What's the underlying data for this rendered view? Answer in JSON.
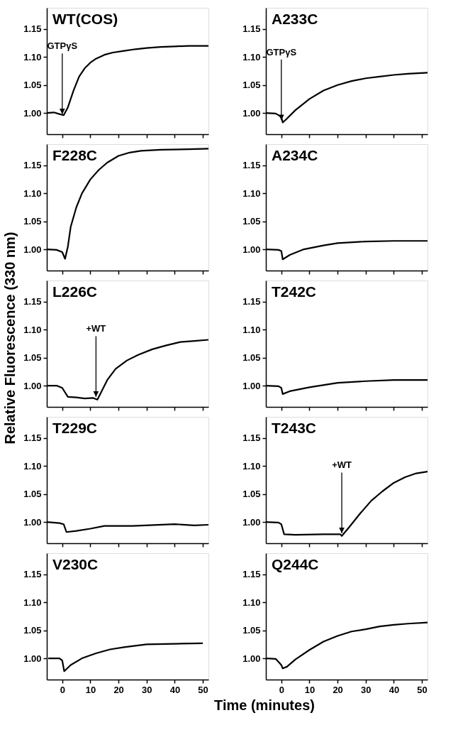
{
  "chart_data": [
    {
      "type": "line",
      "title": "WT(COS)",
      "tick_labels": "y",
      "xlim": [
        -5.5,
        52
      ],
      "ylim": [
        0.962,
        1.188
      ],
      "xticks": [
        0,
        10,
        20,
        30,
        40,
        50
      ],
      "yticks": [
        {
          "value": 1.0,
          "label": "1.00"
        },
        {
          "value": 1.05,
          "label": "1.05"
        },
        {
          "value": 1.1,
          "label": "1.10"
        },
        {
          "value": 1.15,
          "label": "1.15"
        }
      ],
      "series": [
        {
          "color": "#000000",
          "x": [
            -5.5,
            -3,
            -1,
            0.5,
            2,
            4,
            6,
            8,
            10,
            12,
            15,
            18,
            22,
            26,
            30,
            35,
            40,
            45,
            52
          ],
          "values": [
            1.0,
            1.001,
            0.998,
            0.996,
            1.01,
            1.04,
            1.065,
            1.08,
            1.09,
            1.097,
            1.104,
            1.108,
            1.111,
            1.114,
            1.116,
            1.118,
            1.119,
            1.12,
            1.12
          ]
        }
      ],
      "annotations": [
        {
          "text": "GTPγS",
          "x": 0,
          "y": 0.998
        }
      ]
    },
    {
      "type": "line",
      "title": "A233C",
      "tick_labels": "y",
      "xlim": [
        -5.5,
        52
      ],
      "ylim": [
        0.962,
        1.188
      ],
      "xticks": [
        0,
        10,
        20,
        30,
        40,
        50
      ],
      "yticks": [
        {
          "value": 1.0,
          "label": "1.00"
        },
        {
          "value": 1.05,
          "label": "1.05"
        },
        {
          "value": 1.1,
          "label": "1.10"
        },
        {
          "value": 1.15,
          "label": "1.15"
        }
      ],
      "series": [
        {
          "color": "#000000",
          "x": [
            -5.5,
            -2,
            0,
            0.5,
            2,
            5,
            10,
            15,
            20,
            25,
            30,
            35,
            40,
            45,
            52
          ],
          "values": [
            1.0,
            0.999,
            0.993,
            0.983,
            0.99,
            1.005,
            1.025,
            1.04,
            1.05,
            1.057,
            1.062,
            1.065,
            1.068,
            1.07,
            1.072
          ]
        }
      ],
      "annotations": [
        {
          "text": "GTPγS",
          "x": 0,
          "y": 0.987
        }
      ]
    },
    {
      "type": "line",
      "title": "F228C",
      "tick_labels": "y",
      "xlim": [
        -5.5,
        52
      ],
      "ylim": [
        0.962,
        1.188
      ],
      "xticks": [
        0,
        10,
        20,
        30,
        40,
        50
      ],
      "yticks": [
        {
          "value": 1.0,
          "label": "1.00"
        },
        {
          "value": 1.05,
          "label": "1.05"
        },
        {
          "value": 1.1,
          "label": "1.10"
        },
        {
          "value": 1.15,
          "label": "1.15"
        }
      ],
      "series": [
        {
          "color": "#000000",
          "x": [
            -5.5,
            -2,
            0,
            1,
            2,
            3,
            5,
            7,
            10,
            13,
            16,
            20,
            24,
            28,
            35,
            45,
            52
          ],
          "values": [
            1.0,
            0.999,
            0.995,
            0.983,
            1.005,
            1.04,
            1.075,
            1.1,
            1.125,
            1.142,
            1.155,
            1.167,
            1.173,
            1.176,
            1.178,
            1.179,
            1.18
          ]
        }
      ]
    },
    {
      "type": "line",
      "title": "A234C",
      "tick_labels": "y",
      "xlim": [
        -5.5,
        52
      ],
      "ylim": [
        0.962,
        1.188
      ],
      "xticks": [
        0,
        10,
        20,
        30,
        40,
        50
      ],
      "yticks": [
        {
          "value": 1.0,
          "label": "1.00"
        },
        {
          "value": 1.05,
          "label": "1.05"
        },
        {
          "value": 1.1,
          "label": "1.10"
        },
        {
          "value": 1.15,
          "label": "1.15"
        }
      ],
      "series": [
        {
          "color": "#000000",
          "x": [
            -5.5,
            -1,
            0,
            0.5,
            3,
            8,
            15,
            20,
            30,
            40,
            52
          ],
          "values": [
            1.0,
            0.999,
            0.997,
            0.982,
            0.99,
            1.0,
            1.007,
            1.011,
            1.014,
            1.015,
            1.015
          ]
        }
      ]
    },
    {
      "type": "line",
      "title": "L226C",
      "ylabel": "Relative Fluorescence (330 nm)",
      "tick_labels": "y",
      "xlim": [
        -5.5,
        52
      ],
      "ylim": [
        0.962,
        1.188
      ],
      "xticks": [
        0,
        10,
        20,
        30,
        40,
        50
      ],
      "yticks": [
        {
          "value": 1.0,
          "label": "1.00"
        },
        {
          "value": 1.05,
          "label": "1.05"
        },
        {
          "value": 1.1,
          "label": "1.10"
        },
        {
          "value": 1.15,
          "label": "1.15"
        }
      ],
      "series": [
        {
          "color": "#000000",
          "x": [
            -5.5,
            -2,
            0,
            2,
            5,
            8,
            11,
            12.5,
            14,
            16,
            19,
            23,
            27,
            32,
            37,
            42,
            47,
            52
          ],
          "values": [
            1.0,
            1.0,
            0.996,
            0.98,
            0.979,
            0.977,
            0.978,
            0.975,
            0.99,
            1.01,
            1.03,
            1.045,
            1.055,
            1.065,
            1.072,
            1.078,
            1.08,
            1.082
          ]
        }
      ],
      "annotations": [
        {
          "text": "+WT",
          "x": 12,
          "y": 0.98
        }
      ]
    },
    {
      "type": "line",
      "title": "T242C",
      "tick_labels": "y",
      "xlim": [
        -5.5,
        52
      ],
      "ylim": [
        0.962,
        1.188
      ],
      "xticks": [
        0,
        10,
        20,
        30,
        40,
        50
      ],
      "yticks": [
        {
          "value": 1.0,
          "label": "1.00"
        },
        {
          "value": 1.05,
          "label": "1.05"
        },
        {
          "value": 1.1,
          "label": "1.10"
        },
        {
          "value": 1.15,
          "label": "1.15"
        }
      ],
      "series": [
        {
          "color": "#000000",
          "x": [
            -5.5,
            -1,
            0,
            0.5,
            3,
            10,
            20,
            30,
            40,
            52
          ],
          "values": [
            1.0,
            0.999,
            0.996,
            0.985,
            0.99,
            0.997,
            1.005,
            1.008,
            1.01,
            1.01
          ]
        }
      ]
    },
    {
      "type": "line",
      "title": "T229C",
      "tick_labels": "y",
      "xlim": [
        -5.5,
        52
      ],
      "ylim": [
        0.962,
        1.188
      ],
      "xticks": [
        0,
        10,
        20,
        30,
        40,
        50
      ],
      "yticks": [
        {
          "value": 1.0,
          "label": "1.00"
        },
        {
          "value": 1.05,
          "label": "1.05"
        },
        {
          "value": 1.1,
          "label": "1.10"
        },
        {
          "value": 1.15,
          "label": "1.15"
        }
      ],
      "series": [
        {
          "color": "#000000",
          "x": [
            -5.5,
            -1,
            0.5,
            1.5,
            5,
            10,
            15,
            25,
            40,
            47,
            52
          ],
          "values": [
            1.0,
            0.998,
            0.996,
            0.982,
            0.984,
            0.988,
            0.993,
            0.993,
            0.996,
            0.994,
            0.995
          ]
        }
      ]
    },
    {
      "type": "line",
      "title": "T243C",
      "tick_labels": "y",
      "xlim": [
        -5.5,
        52
      ],
      "ylim": [
        0.962,
        1.188
      ],
      "xticks": [
        0,
        10,
        20,
        30,
        40,
        50
      ],
      "yticks": [
        {
          "value": 1.0,
          "label": "1.00"
        },
        {
          "value": 1.05,
          "label": "1.05"
        },
        {
          "value": 1.1,
          "label": "1.10"
        },
        {
          "value": 1.15,
          "label": "1.15"
        }
      ],
      "series": [
        {
          "color": "#000000",
          "x": [
            -5.5,
            -1,
            0,
            1,
            5,
            15,
            21,
            21.5,
            24,
            28,
            32,
            36,
            40,
            44,
            48,
            52
          ],
          "values": [
            1.0,
            0.999,
            0.996,
            0.978,
            0.977,
            0.978,
            0.978,
            0.975,
            0.99,
            1.015,
            1.038,
            1.055,
            1.07,
            1.08,
            1.087,
            1.09
          ]
        }
      ],
      "annotations": [
        {
          "text": "+WT",
          "x": 21.5,
          "y": 0.98
        }
      ]
    },
    {
      "type": "line",
      "title": "V230C",
      "xlim": [
        -5.5,
        52
      ],
      "ylim": [
        0.962,
        1.188
      ],
      "xticks": [
        0,
        10,
        20,
        30,
        40,
        50
      ],
      "yticks": [
        {
          "value": 1.0,
          "label": "1.00"
        },
        {
          "value": 1.05,
          "label": "1.05"
        },
        {
          "value": 1.1,
          "label": "1.10"
        },
        {
          "value": 1.15,
          "label": "1.15"
        }
      ],
      "series": [
        {
          "color": "#000000",
          "x": [
            -5,
            -1,
            0,
            0.7,
            3,
            7,
            12,
            17,
            22,
            30,
            40,
            50
          ],
          "values": [
            1.0,
            1.0,
            0.996,
            0.977,
            0.988,
            1.0,
            1.009,
            1.016,
            1.02,
            1.025,
            1.026,
            1.027
          ]
        }
      ]
    },
    {
      "type": "line",
      "title": "Q244C",
      "xlabel": "Time (minutes)",
      "xlim": [
        -5.5,
        52
      ],
      "ylim": [
        0.962,
        1.188
      ],
      "xticks": [
        0,
        10,
        20,
        30,
        40,
        50
      ],
      "yticks": [
        {
          "value": 1.0,
          "label": "1.00"
        },
        {
          "value": 1.05,
          "label": "1.05"
        },
        {
          "value": 1.1,
          "label": "1.10"
        },
        {
          "value": 1.15,
          "label": "1.15"
        }
      ],
      "series": [
        {
          "color": "#000000",
          "x": [
            -5.5,
            -2,
            0,
            0.5,
            2,
            5,
            10,
            15,
            20,
            25,
            30,
            35,
            40,
            45,
            52
          ],
          "values": [
            1.0,
            0.999,
            0.988,
            0.982,
            0.985,
            0.998,
            1.015,
            1.03,
            1.04,
            1.048,
            1.052,
            1.057,
            1.06,
            1.062,
            1.064
          ]
        }
      ]
    }
  ]
}
